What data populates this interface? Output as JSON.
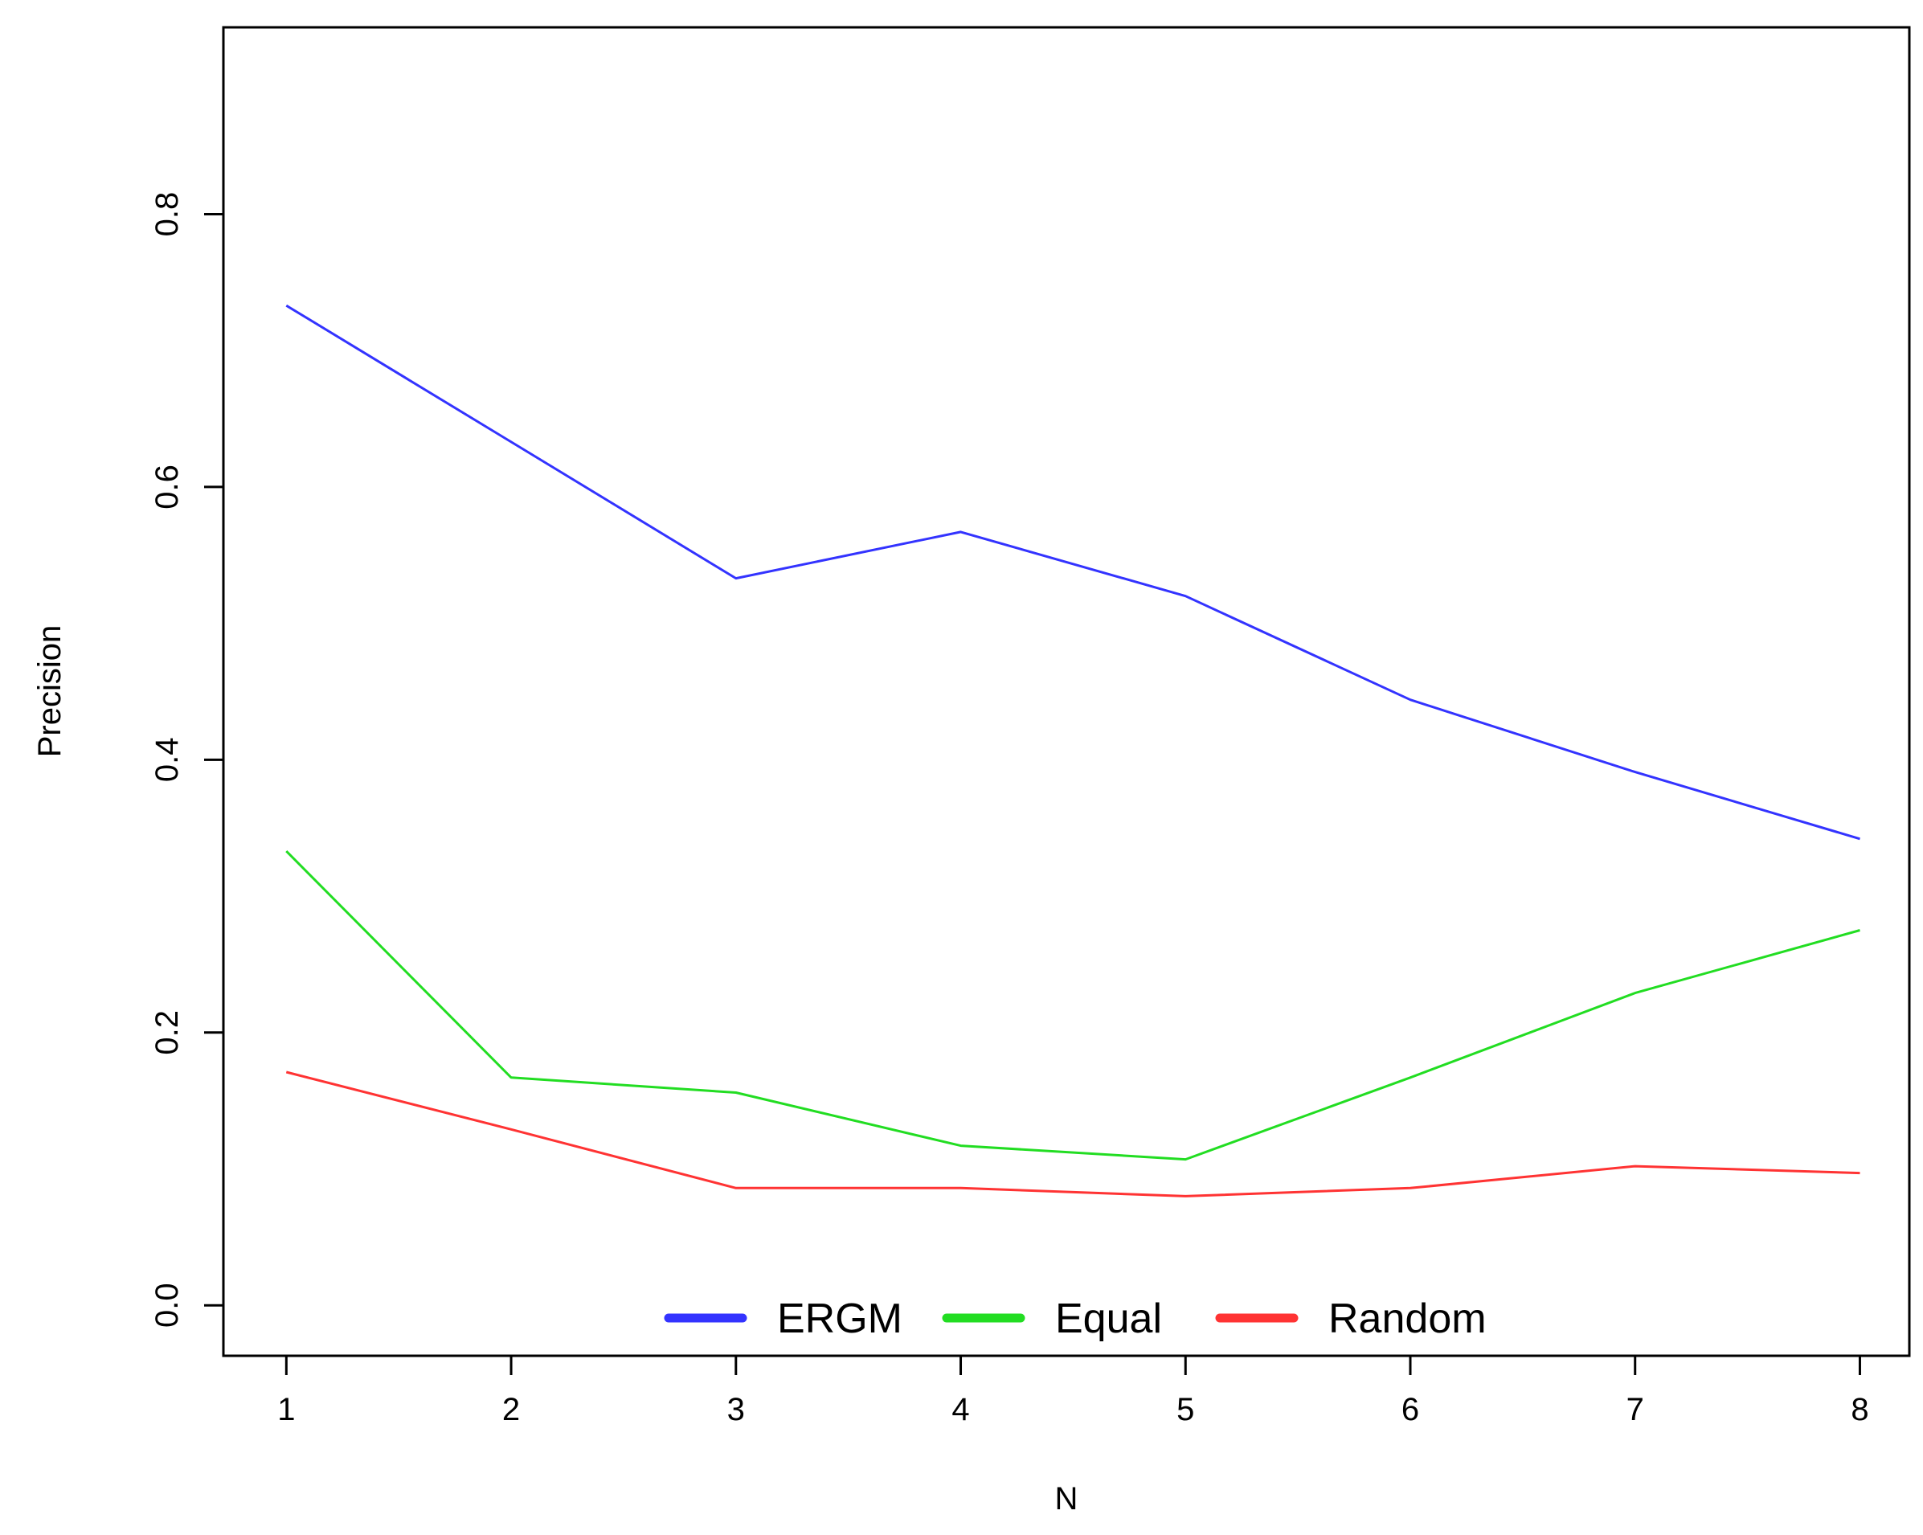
{
  "chart_data": {
    "type": "line",
    "x": [
      1,
      2,
      3,
      4,
      5,
      6,
      7,
      8
    ],
    "xlabel": "N",
    "ylabel": "Precision",
    "xlim": [
      0.72,
      8.22
    ],
    "ylim": [
      -0.037,
      0.937
    ],
    "x_ticks": [
      "1",
      "2",
      "3",
      "4",
      "5",
      "6",
      "7",
      "8"
    ],
    "y_ticks": [
      "0.0",
      "0.2",
      "0.4",
      "0.6",
      "0.8"
    ],
    "y_tick_values": [
      0.0,
      0.2,
      0.4,
      0.6,
      0.8
    ],
    "grid": false,
    "legend_position": "bottom-center",
    "series": [
      {
        "name": "ERGM",
        "color": "#3333ff",
        "values": [
          0.733,
          0.633,
          0.533,
          0.567,
          0.52,
          0.444,
          0.391,
          0.342
        ]
      },
      {
        "name": "Equal",
        "color": "#22dd22",
        "values": [
          0.333,
          0.167,
          0.156,
          0.117,
          0.107,
          0.167,
          0.229,
          0.275
        ]
      },
      {
        "name": "Random",
        "color": "#ff3333",
        "values": [
          0.171,
          0.129,
          0.086,
          0.086,
          0.08,
          0.086,
          0.102,
          0.097
        ]
      }
    ]
  }
}
